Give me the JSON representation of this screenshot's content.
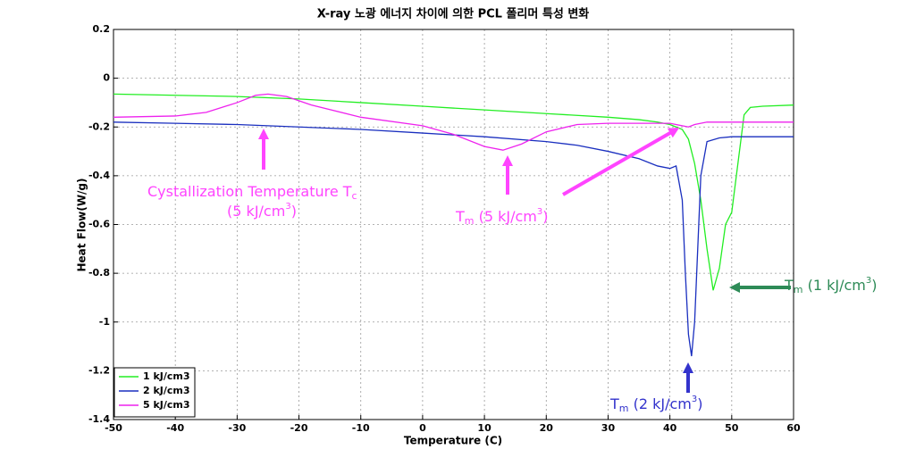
{
  "chart_data": {
    "type": "line",
    "title": "X-ray 노광 에너지 차이에 의한 PCL 폴리머 특성 변화",
    "x_label": "Temperature (C)",
    "y_label": "Heat Flow(W/g)",
    "xlim": [
      -50,
      60
    ],
    "ylim": [
      -1.4,
      0.2
    ],
    "xticks": [
      -50,
      -40,
      -30,
      -20,
      -10,
      0,
      10,
      20,
      30,
      40,
      50,
      60
    ],
    "yticks": [
      -1.4,
      -1.2,
      -1,
      -0.8,
      -0.6,
      -0.4,
      -0.2,
      0,
      0.2
    ],
    "grid": true,
    "legend": "lower left",
    "series": [
      {
        "name": "1 kJ/cm3",
        "color": "#22ee22",
        "x": [
          -50,
          -40,
          -30,
          -20,
          -10,
          0,
          10,
          20,
          30,
          35,
          38,
          40,
          42,
          43,
          44,
          45,
          46,
          47,
          48,
          49,
          50,
          51,
          52,
          53,
          55,
          60
        ],
        "values": [
          -0.065,
          -0.07,
          -0.075,
          -0.085,
          -0.1,
          -0.115,
          -0.13,
          -0.145,
          -0.16,
          -0.17,
          -0.18,
          -0.19,
          -0.21,
          -0.25,
          -0.35,
          -0.5,
          -0.7,
          -0.87,
          -0.78,
          -0.6,
          -0.55,
          -0.35,
          -0.15,
          -0.12,
          -0.115,
          -0.11
        ]
      },
      {
        "name": "2 kJ/cm3",
        "color": "#1a2fbf",
        "x": [
          -50,
          -40,
          -30,
          -20,
          -10,
          0,
          10,
          20,
          25,
          30,
          35,
          38,
          40,
          41,
          42,
          42.5,
          43,
          43.5,
          44,
          44.5,
          45,
          46,
          48,
          50,
          60
        ],
        "values": [
          -0.18,
          -0.185,
          -0.19,
          -0.2,
          -0.21,
          -0.225,
          -0.24,
          -0.26,
          -0.275,
          -0.3,
          -0.33,
          -0.36,
          -0.37,
          -0.36,
          -0.5,
          -0.8,
          -1.05,
          -1.14,
          -1.0,
          -0.7,
          -0.4,
          -0.26,
          -0.245,
          -0.24,
          -0.24
        ]
      },
      {
        "name": "5 kJ/cm3",
        "color": "#ee22ee",
        "x": [
          -50,
          -40,
          -35,
          -30,
          -27,
          -25,
          -22,
          -18,
          -10,
          0,
          5,
          10,
          13,
          16,
          20,
          25,
          30,
          40,
          42,
          43,
          44,
          46,
          50,
          60
        ],
        "values": [
          -0.16,
          -0.155,
          -0.14,
          -0.1,
          -0.07,
          -0.065,
          -0.075,
          -0.11,
          -0.16,
          -0.195,
          -0.23,
          -0.28,
          -0.295,
          -0.27,
          -0.22,
          -0.19,
          -0.185,
          -0.185,
          -0.195,
          -0.2,
          -0.19,
          -0.18,
          -0.18,
          -0.18
        ]
      }
    ],
    "annotations": [
      {
        "color": "#ff44ff",
        "lines": [
          [
            {
              "text": "Cystallization Temperature T"
            },
            {
              "text": "c",
              "shift": "sub"
            }
          ],
          [
            {
              "text": "(5 kJ/cm"
            },
            {
              "text": "3",
              "shift": "sup"
            },
            {
              "text": ")"
            }
          ]
        ]
      },
      {
        "color": "#ff44ff",
        "lines": [
          [
            {
              "text": "T"
            },
            {
              "text": "m",
              "shift": "sub"
            },
            {
              "text": " (5 kJ/cm"
            },
            {
              "text": "3",
              "shift": "sup"
            },
            {
              "text": ")"
            }
          ]
        ]
      },
      {
        "color": "#2e8b57",
        "lines": [
          [
            {
              "text": "T"
            },
            {
              "text": "m",
              "shift": "sub"
            },
            {
              "text": " (1 kJ/cm"
            },
            {
              "text": "3",
              "shift": "sup"
            },
            {
              "text": ")"
            }
          ]
        ]
      },
      {
        "color": "#3333cc",
        "lines": [
          [
            {
              "text": "T"
            },
            {
              "text": "m",
              "shift": "sub"
            },
            {
              "text": " (2 kJ/cm"
            },
            {
              "text": "3",
              "shift": "sup"
            },
            {
              "text": ")"
            }
          ]
        ]
      }
    ]
  }
}
